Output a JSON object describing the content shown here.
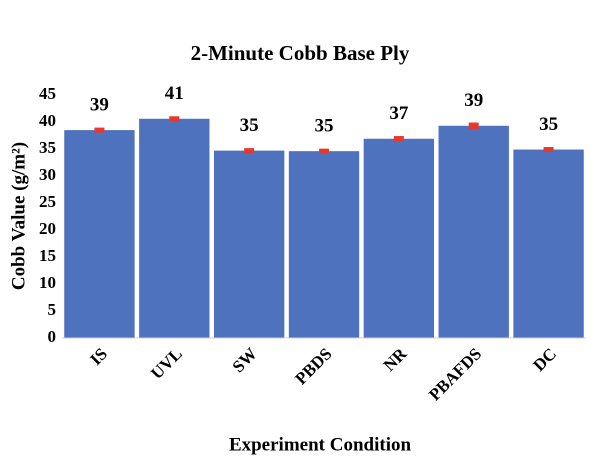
{
  "chart_data": {
    "type": "bar",
    "title": "2-Minute Cobb Base Ply",
    "x_label": "Experiment Condition",
    "y_label": "Cobb Value (g/m²)",
    "categories": [
      "IS",
      "UVL",
      "SW",
      "PBDS",
      "NR",
      "PBAFDS",
      "DC"
    ],
    "values": [
      38.5,
      40.6,
      34.7,
      34.6,
      36.9,
      39.3,
      34.9
    ],
    "value_labels": [
      "39",
      "41",
      "35",
      "35",
      "37",
      "39",
      "35"
    ],
    "errors": [
      0.4,
      0.3,
      0.3,
      0.4,
      0.5,
      0.6,
      0.3
    ],
    "color": "#4f72be",
    "error_color": "#e8382a",
    "ylim": [
      0,
      45
    ],
    "yticks": [
      0,
      5,
      10,
      15,
      20,
      25,
      30,
      35,
      40,
      45
    ],
    "grid": false
  }
}
